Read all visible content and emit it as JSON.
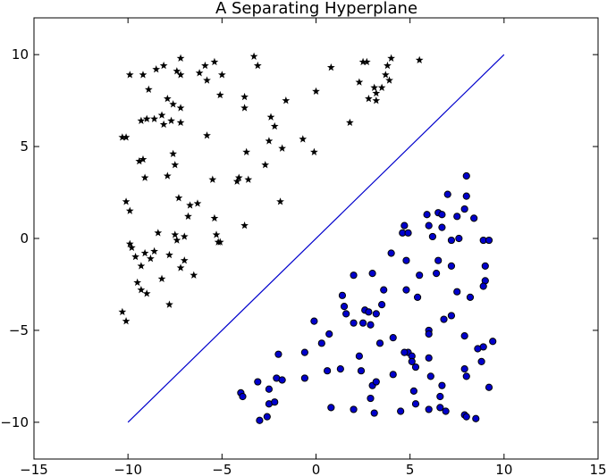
{
  "chart_data": {
    "type": "scatter",
    "title": "A Separating Hyperplane",
    "xlabel": "",
    "ylabel": "",
    "xlim": [
      -15,
      15
    ],
    "ylim": [
      -12,
      12
    ],
    "xticks": [
      -15,
      -10,
      -5,
      0,
      5,
      10,
      15
    ],
    "yticks": [
      -10,
      -5,
      0,
      5,
      10
    ],
    "xtick_labels": [
      "−15",
      "−10",
      "−5",
      "0",
      "5",
      "10",
      "15"
    ],
    "ytick_labels": [
      "−10",
      "−5",
      "0",
      "5",
      "10"
    ],
    "grid": false,
    "colors": {
      "line": "#0000cc",
      "circle_fill": "#0000cc",
      "circle_edge": "#000000",
      "star": "#000000"
    },
    "line": {
      "x": [
        -10,
        10
      ],
      "y": [
        -10,
        10
      ]
    },
    "series": [
      {
        "marker": "star",
        "points": [
          [
            -9.9,
            8.9
          ],
          [
            -9.2,
            8.9
          ],
          [
            -8.5,
            9.2
          ],
          [
            -8.1,
            9.4
          ],
          [
            -7.4,
            9.1
          ],
          [
            -7.2,
            9.8
          ],
          [
            -7.2,
            8.9
          ],
          [
            -6.2,
            9.0
          ],
          [
            -5.9,
            9.4
          ],
          [
            -5.8,
            8.6
          ],
          [
            -5.4,
            9.6
          ],
          [
            -5.0,
            8.9
          ],
          [
            -3.3,
            9.9
          ],
          [
            -3.1,
            9.4
          ],
          [
            -8.9,
            8.1
          ],
          [
            -5.1,
            7.8
          ],
          [
            -1.6,
            7.5
          ],
          [
            -3.8,
            7.7
          ],
          [
            -3.8,
            7.1
          ],
          [
            -7.9,
            7.6
          ],
          [
            -7.6,
            7.3
          ],
          [
            -7.2,
            7.1
          ],
          [
            -9.3,
            6.4
          ],
          [
            -9.0,
            6.5
          ],
          [
            -8.6,
            6.5
          ],
          [
            -8.2,
            6.7
          ],
          [
            -8.1,
            6.2
          ],
          [
            -7.7,
            6.4
          ],
          [
            -7.2,
            6.3
          ],
          [
            -2.4,
            6.6
          ],
          [
            -2.2,
            6.1
          ],
          [
            -10.3,
            5.5
          ],
          [
            -10.1,
            5.5
          ],
          [
            -5.8,
            5.6
          ],
          [
            -2.5,
            5.3
          ],
          [
            -1.8,
            4.9
          ],
          [
            -0.7,
            5.4
          ],
          [
            -0.1,
            4.7
          ],
          [
            -7.6,
            4.6
          ],
          [
            -3.7,
            4.7
          ],
          [
            -9.4,
            4.2
          ],
          [
            -9.2,
            4.3
          ],
          [
            -7.5,
            4.0
          ],
          [
            -2.7,
            4.0
          ],
          [
            -9.1,
            3.3
          ],
          [
            -7.9,
            3.4
          ],
          [
            -5.5,
            3.2
          ],
          [
            -4.2,
            3.1
          ],
          [
            -4.1,
            3.3
          ],
          [
            -3.6,
            3.2
          ],
          [
            -10.1,
            2.0
          ],
          [
            -7.3,
            2.2
          ],
          [
            -6.7,
            1.8
          ],
          [
            -6.3,
            1.9
          ],
          [
            -1.9,
            2.0
          ],
          [
            -9.9,
            1.5
          ],
          [
            -6.8,
            1.2
          ],
          [
            -5.4,
            1.1
          ],
          [
            -3.8,
            0.7
          ],
          [
            -8.4,
            0.3
          ],
          [
            -7.5,
            0.2
          ],
          [
            -7.0,
            0.1
          ],
          [
            -7.4,
            -0.1
          ],
          [
            -5.3,
            0.2
          ],
          [
            -5.2,
            -0.2
          ],
          [
            -5.1,
            -0.2
          ],
          [
            -9.9,
            -0.3
          ],
          [
            -9.8,
            -0.5
          ],
          [
            -9.1,
            -0.8
          ],
          [
            -8.6,
            -0.7
          ],
          [
            -7.8,
            -0.9
          ],
          [
            -7.0,
            -1.2
          ],
          [
            -9.6,
            -1.0
          ],
          [
            -8.8,
            -1.1
          ],
          [
            -9.3,
            -1.5
          ],
          [
            -7.2,
            -1.6
          ],
          [
            -6.5,
            -2.0
          ],
          [
            -8.2,
            -2.2
          ],
          [
            -9.5,
            -2.4
          ],
          [
            -9.3,
            -2.8
          ],
          [
            -9.0,
            -3.0
          ],
          [
            -7.8,
            -3.6
          ],
          [
            -10.3,
            -4.0
          ],
          [
            -10.1,
            -4.5
          ],
          [
            0.8,
            9.3
          ],
          [
            2.5,
            9.6
          ],
          [
            2.7,
            9.6
          ],
          [
            3.8,
            9.4
          ],
          [
            5.5,
            9.7
          ],
          [
            3.7,
            8.9
          ],
          [
            4.0,
            9.8
          ],
          [
            2.3,
            8.5
          ],
          [
            3.1,
            8.2
          ],
          [
            3.2,
            7.9
          ],
          [
            3.9,
            8.6
          ],
          [
            3.5,
            8.2
          ],
          [
            0.0,
            8.0
          ],
          [
            2.8,
            7.6
          ],
          [
            3.2,
            7.5
          ],
          [
            1.8,
            6.3
          ]
        ]
      },
      {
        "marker": "circle",
        "points": [
          [
            8.0,
            3.4
          ],
          [
            7.0,
            2.4
          ],
          [
            8.0,
            2.3
          ],
          [
            7.9,
            1.6
          ],
          [
            7.5,
            1.2
          ],
          [
            5.9,
            1.3
          ],
          [
            6.5,
            1.4
          ],
          [
            6.7,
            1.3
          ],
          [
            8.4,
            1.1
          ],
          [
            6.0,
            0.7
          ],
          [
            6.7,
            0.6
          ],
          [
            4.7,
            0.7
          ],
          [
            4.6,
            0.3
          ],
          [
            4.9,
            0.3
          ],
          [
            6.2,
            0.1
          ],
          [
            7.2,
            -0.1
          ],
          [
            7.6,
            0.0
          ],
          [
            8.9,
            -0.1
          ],
          [
            9.2,
            -0.1
          ],
          [
            4.0,
            -0.8
          ],
          [
            6.5,
            -1.2
          ],
          [
            4.8,
            -1.2
          ],
          [
            7.2,
            -1.5
          ],
          [
            9.0,
            -1.5
          ],
          [
            2.0,
            -2.0
          ],
          [
            6.4,
            -1.9
          ],
          [
            3.0,
            -1.9
          ],
          [
            5.5,
            -2.0
          ],
          [
            9.0,
            -2.3
          ],
          [
            8.9,
            -2.6
          ],
          [
            1.4,
            -3.1
          ],
          [
            3.6,
            -2.8
          ],
          [
            4.8,
            -2.8
          ],
          [
            7.5,
            -2.9
          ],
          [
            8.2,
            -3.2
          ],
          [
            1.5,
            -3.7
          ],
          [
            1.6,
            -4.1
          ],
          [
            2.0,
            -4.6
          ],
          [
            2.6,
            -3.9
          ],
          [
            2.8,
            -4.0
          ],
          [
            3.2,
            -4.1
          ],
          [
            3.5,
            -3.6
          ],
          [
            5.4,
            -3.2
          ],
          [
            2.5,
            -4.6
          ],
          [
            6.8,
            -4.4
          ],
          [
            7.2,
            -4.2
          ],
          [
            -0.1,
            -4.5
          ],
          [
            0.3,
            -5.7
          ],
          [
            0.7,
            -5.2
          ],
          [
            2.9,
            -4.7
          ],
          [
            4.1,
            -5.4
          ],
          [
            6.0,
            -5.0
          ],
          [
            6.0,
            -5.2
          ],
          [
            7.9,
            -5.3
          ],
          [
            8.9,
            -5.9
          ],
          [
            9.4,
            -5.6
          ],
          [
            3.4,
            -5.7
          ],
          [
            4.9,
            -6.2
          ],
          [
            4.7,
            -6.2
          ],
          [
            5.1,
            -6.4
          ],
          [
            5.1,
            -6.7
          ],
          [
            8.6,
            -6.0
          ],
          [
            -2.0,
            -6.3
          ],
          [
            -0.6,
            -6.2
          ],
          [
            2.3,
            -6.4
          ],
          [
            6.0,
            -6.5
          ],
          [
            8.8,
            -6.7
          ],
          [
            -4.0,
            -8.4
          ],
          [
            -3.9,
            -8.6
          ],
          [
            -3.1,
            -7.8
          ],
          [
            -2.1,
            -7.6
          ],
          [
            -1.8,
            -7.7
          ],
          [
            -2.5,
            -8.2
          ],
          [
            -0.6,
            -7.6
          ],
          [
            0.6,
            -7.2
          ],
          [
            1.3,
            -7.1
          ],
          [
            2.4,
            -7.2
          ],
          [
            3.0,
            -8.0
          ],
          [
            3.2,
            -7.8
          ],
          [
            4.1,
            -7.4
          ],
          [
            5.3,
            -7.0
          ],
          [
            6.1,
            -7.5
          ],
          [
            7.9,
            -7.1
          ],
          [
            8.0,
            -7.5
          ],
          [
            9.2,
            -8.1
          ],
          [
            5.2,
            -8.3
          ],
          [
            6.7,
            -8.0
          ],
          [
            -2.5,
            -9.0
          ],
          [
            -2.2,
            -8.9
          ],
          [
            2.9,
            -8.7
          ],
          [
            6.6,
            -8.6
          ],
          [
            0.8,
            -9.2
          ],
          [
            2.0,
            -9.3
          ],
          [
            3.1,
            -9.5
          ],
          [
            4.5,
            -9.4
          ],
          [
            5.3,
            -9.0
          ],
          [
            6.0,
            -9.3
          ],
          [
            6.6,
            -9.2
          ],
          [
            6.9,
            -9.4
          ],
          [
            7.9,
            -9.6
          ],
          [
            8.5,
            -9.8
          ],
          [
            -3.0,
            -9.9
          ],
          [
            -2.6,
            -9.7
          ],
          [
            8.0,
            -9.7
          ]
        ]
      }
    ]
  }
}
